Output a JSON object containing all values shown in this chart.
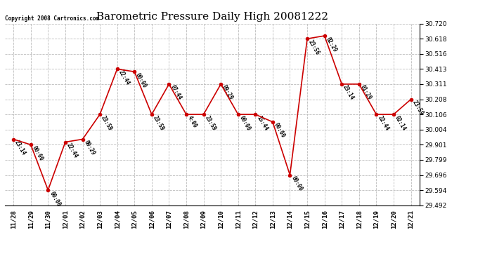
{
  "title": "Barometric Pressure Daily High 20081222",
  "copyright": "Copyright 2008 Cartronics.com",
  "x_labels": [
    "11/28",
    "11/29",
    "11/30",
    "12/01",
    "12/02",
    "12/03",
    "12/04",
    "12/05",
    "12/06",
    "12/07",
    "12/08",
    "12/09",
    "12/10",
    "12/11",
    "12/12",
    "12/13",
    "12/14",
    "12/15",
    "12/16",
    "12/17",
    "12/18",
    "12/19",
    "12/20",
    "12/21"
  ],
  "y_values": [
    29.938,
    29.901,
    29.594,
    29.919,
    29.938,
    30.106,
    30.413,
    30.395,
    30.106,
    30.311,
    30.106,
    30.106,
    30.311,
    30.106,
    30.106,
    30.055,
    29.696,
    30.618,
    30.638,
    30.311,
    30.311,
    30.106,
    30.106,
    30.208
  ],
  "point_labels": [
    "23:14",
    "00:00",
    "00:00",
    "22:44",
    "09:29",
    "23:59",
    "22:44",
    "00:00",
    "23:59",
    "07:44",
    "4:00",
    "23:59",
    "09:29",
    "00:00",
    "15:44",
    "00:00",
    "00:00",
    "23:56",
    "02:29",
    "23:14",
    "01:29",
    "22:44",
    "02:14",
    "23:59"
  ],
  "ylim_min": 29.492,
  "ylim_max": 30.72,
  "y_ticks": [
    29.492,
    29.594,
    29.696,
    29.799,
    29.901,
    30.004,
    30.106,
    30.208,
    30.311,
    30.413,
    30.516,
    30.618,
    30.72
  ],
  "line_color": "#cc0000",
  "marker_color": "#cc0000",
  "bg_color": "#ffffff",
  "grid_color": "#bbbbbb",
  "title_fontsize": 11,
  "label_fontsize": 6.5,
  "point_label_fontsize": 5.5,
  "copyright_fontsize": 5.5
}
